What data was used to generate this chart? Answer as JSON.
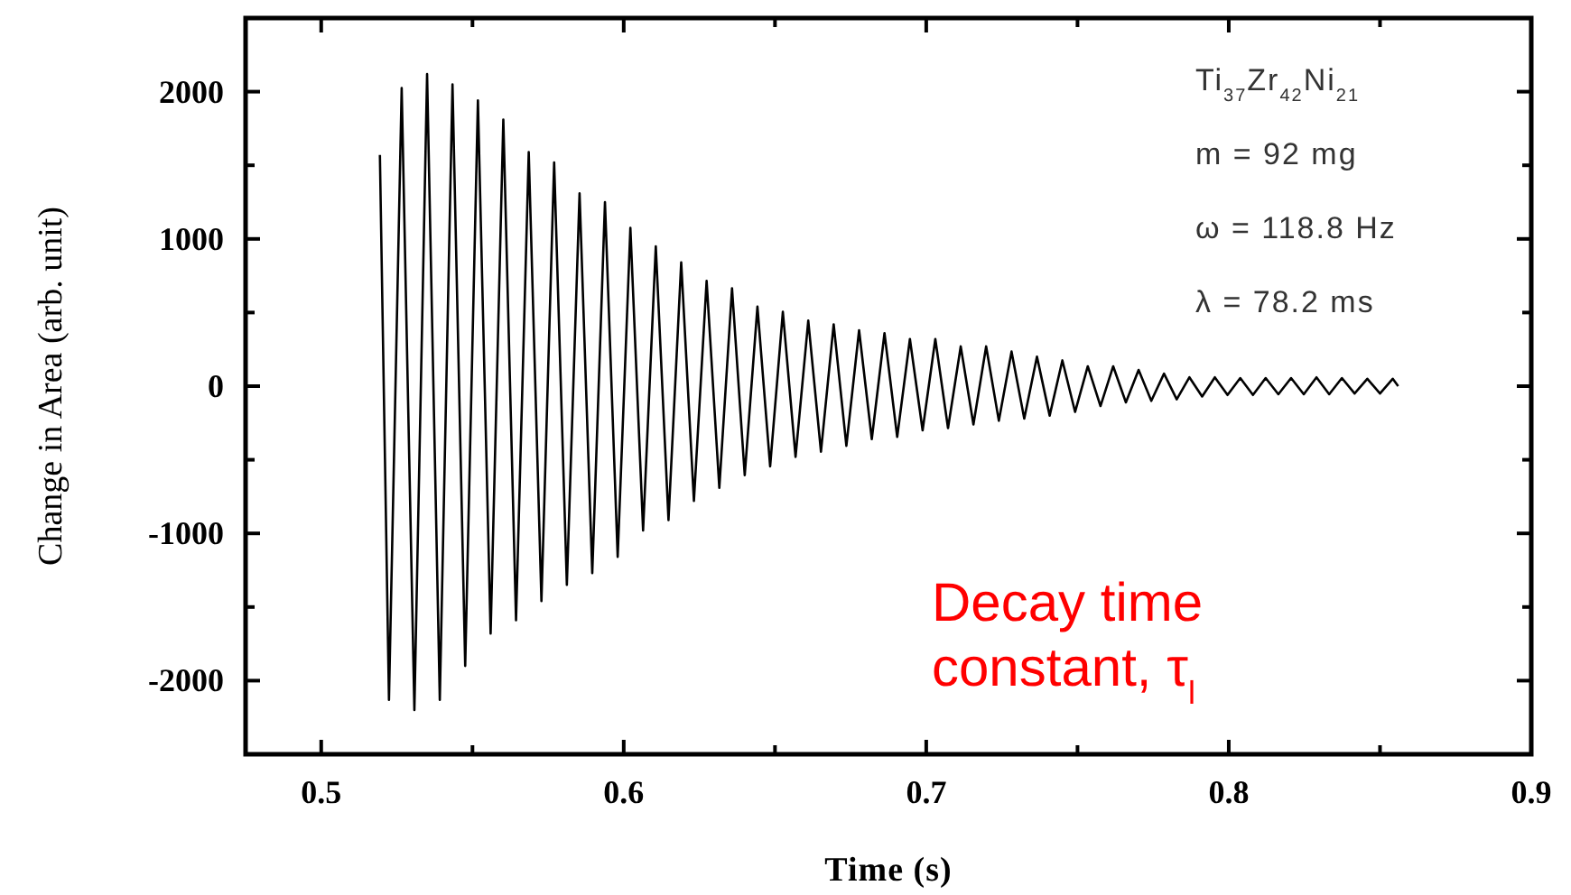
{
  "chart_data": {
    "type": "line",
    "xlabel": "Time (s)",
    "ylabel": "Change in Area (arb. unit)",
    "xlim": [
      0.475,
      0.9
    ],
    "ylim": [
      -2500,
      2500
    ],
    "xticks": [
      0.5,
      {
        "value": 0.55,
        "label": null
      },
      0.6,
      {
        "value": 0.65,
        "label": null
      },
      0.7,
      {
        "value": 0.75,
        "label": null
      },
      0.8,
      {
        "value": 0.85,
        "label": null
      },
      0.9
    ],
    "yticks": [
      {
        "value": -2500,
        "label": null
      },
      -2000,
      {
        "value": -1500,
        "label": null
      },
      -1000,
      {
        "value": -500,
        "label": null
      },
      0,
      {
        "value": 500,
        "label": null
      },
      1000,
      {
        "value": 1500,
        "label": null
      },
      2000,
      {
        "value": 2500,
        "label": null
      }
    ],
    "grid": false,
    "marker": "none",
    "line_style": "solid",
    "annotations": [
      "Ti$_{37}$Zr$_{42}$Ni$_{21}$",
      "m = 92 mg",
      "ω = 118.8 Hz",
      "λ = 78.2 ms",
      "Decay time constant, τ$_{l}$"
    ],
    "series": [
      {
        "color": "#000000",
        "x": [
          0.5194,
          0.5224,
          0.5266,
          0.5308,
          0.535,
          0.5392,
          0.5434,
          0.5476,
          0.5518,
          0.556,
          0.5602,
          0.5644,
          0.5686,
          0.5728,
          0.577,
          0.5812,
          0.5854,
          0.5896,
          0.5938,
          0.598,
          0.6022,
          0.6064,
          0.6106,
          0.6148,
          0.619,
          0.6232,
          0.6274,
          0.6316,
          0.6358,
          0.64,
          0.6442,
          0.6484,
          0.6526,
          0.6568,
          0.661,
          0.6652,
          0.6694,
          0.6736,
          0.6778,
          0.682,
          0.6862,
          0.6904,
          0.6946,
          0.6988,
          0.703,
          0.7072,
          0.7114,
          0.7156,
          0.7198,
          0.724,
          0.7282,
          0.7324,
          0.7366,
          0.7408,
          0.745,
          0.7492,
          0.7534,
          0.7576,
          0.7618,
          0.766,
          0.7702,
          0.7744,
          0.7786,
          0.7828,
          0.787,
          0.7912,
          0.7954,
          0.7996,
          0.8038,
          0.808,
          0.8122,
          0.8164,
          0.8206,
          0.8248,
          0.829,
          0.8332,
          0.8374,
          0.8416,
          0.8458,
          0.85,
          0.8542,
          0.856
        ],
        "values": [
          1570,
          -2130,
          2025,
          -2200,
          2120,
          -2130,
          2050,
          -1900,
          1940,
          -1680,
          1810,
          -1590,
          1590,
          -1460,
          1520,
          -1350,
          1310,
          -1270,
          1250,
          -1160,
          1075,
          -980,
          950,
          -910,
          840,
          -780,
          715,
          -690,
          665,
          -605,
          540,
          -545,
          505,
          -480,
          445,
          -445,
          420,
          -405,
          380,
          -360,
          360,
          -345,
          320,
          -300,
          320,
          -285,
          270,
          -260,
          270,
          -235,
          235,
          -220,
          200,
          -200,
          175,
          -175,
          135,
          -135,
          135,
          -110,
          110,
          -100,
          85,
          -90,
          60,
          -70,
          60,
          -60,
          55,
          -60,
          55,
          -55,
          55,
          -55,
          60,
          -55,
          55,
          -50,
          50,
          -50,
          50,
          0
        ]
      }
    ]
  }
}
